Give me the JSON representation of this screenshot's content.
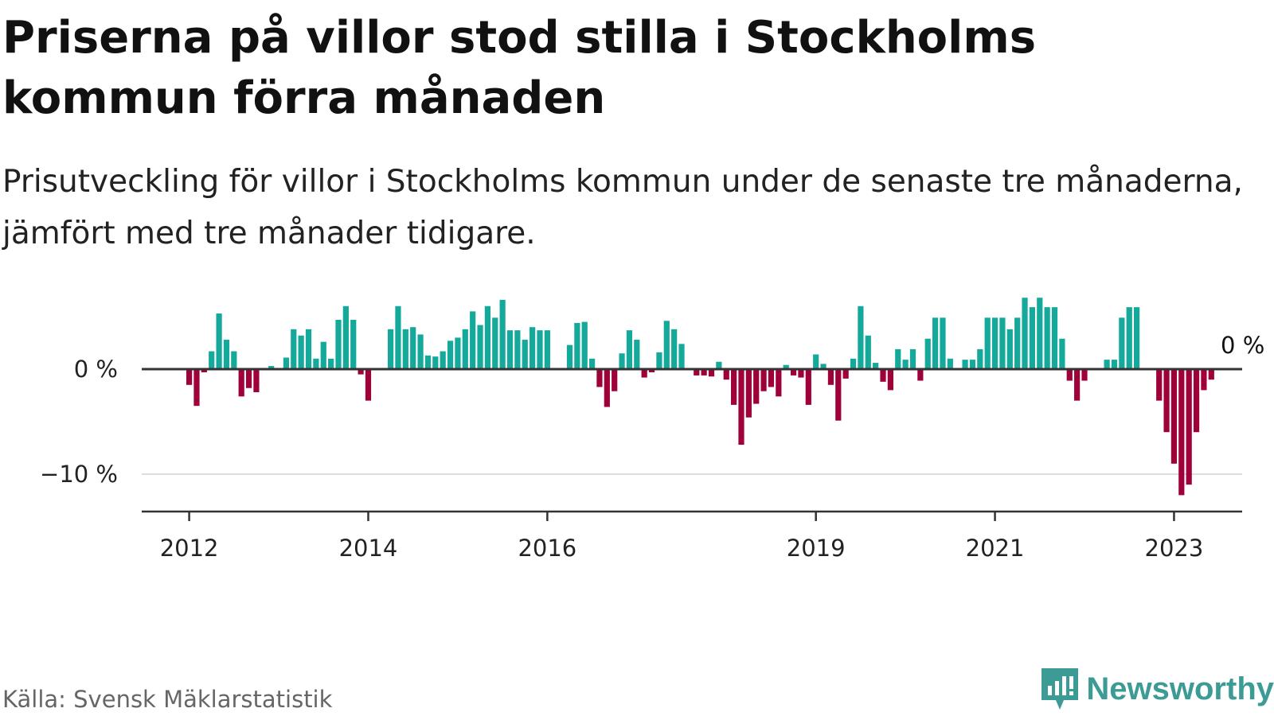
{
  "title": "Priserna på villor stod stilla i Stockholms kommun förra månaden",
  "subtitle": "Prisutveckling för villor i Stockholms kommun under de senaste tre månaderna, jämfört med tre månader tidigare.",
  "source": "Källa: Svensk Mäklarstatistik",
  "brand": {
    "name": "Newsworthy",
    "icon": "newsworthy-logo-icon",
    "color": "#3d9b95"
  },
  "chart_data": {
    "type": "bar",
    "title": "Priserna på villor stod stilla i Stockholms kommun förra månaden",
    "xlabel": "",
    "ylabel": "",
    "ylim": [
      -13,
      7.5
    ],
    "y_ticks": [
      {
        "value": 0,
        "label": "0 %"
      },
      {
        "value": -10,
        "label": "−10 %"
      }
    ],
    "x_ticks": [
      "2012",
      "2014",
      "2016",
      "2019",
      "2021",
      "2023"
    ],
    "grid": true,
    "legend": "none",
    "colors": {
      "positive": "#14a99b",
      "negative": "#a0003a"
    },
    "annotation": {
      "label": "0 %"
    },
    "values": [
      -1.5,
      -3.5,
      -0.3,
      1.7,
      5.3,
      2.8,
      1.7,
      -2.6,
      -1.8,
      -2.2,
      0,
      0.3,
      0,
      1.1,
      3.8,
      3.2,
      3.8,
      1.0,
      2.6,
      1.0,
      4.7,
      6.0,
      4.7,
      -0.5,
      -3.0,
      0,
      0,
      3.8,
      6.0,
      3.8,
      4.0,
      3.3,
      1.3,
      1.2,
      1.7,
      2.7,
      3.0,
      3.8,
      5.5,
      4.2,
      6.0,
      4.9,
      6.6,
      3.7,
      3.7,
      2.8,
      4.0,
      3.7,
      3.7,
      0,
      0,
      2.3,
      4.4,
      4.5,
      1.0,
      -1.7,
      -3.6,
      -2.1,
      1.5,
      3.7,
      2.8,
      -0.8,
      -0.3,
      1.6,
      4.6,
      3.8,
      2.4,
      0,
      -0.6,
      -0.6,
      -0.7,
      0.7,
      -1.0,
      -3.4,
      -7.2,
      -4.6,
      -3.3,
      -2.1,
      -1.7,
      -2.6,
      0.4,
      -0.6,
      -0.8,
      -3.4,
      1.4,
      0.5,
      -1.5,
      -4.9,
      -0.9,
      1.0,
      6.0,
      3.2,
      0.6,
      -1.2,
      -2.0,
      1.9,
      0.9,
      1.9,
      -1.1,
      2.9,
      4.9,
      4.9,
      1.0,
      0,
      0.9,
      0.9,
      1.9,
      4.9,
      4.9,
      4.9,
      3.8,
      4.9,
      6.8,
      5.9,
      6.8,
      5.9,
      5.9,
      2.9,
      -1.1,
      -3.0,
      -1.1,
      0,
      0,
      0.9,
      0.9,
      4.9,
      5.9,
      5.9,
      0,
      0,
      -3.0,
      -6.0,
      -9.0,
      -12.0,
      -11.0,
      -6.0,
      -2.0,
      -1.0,
      0
    ]
  }
}
